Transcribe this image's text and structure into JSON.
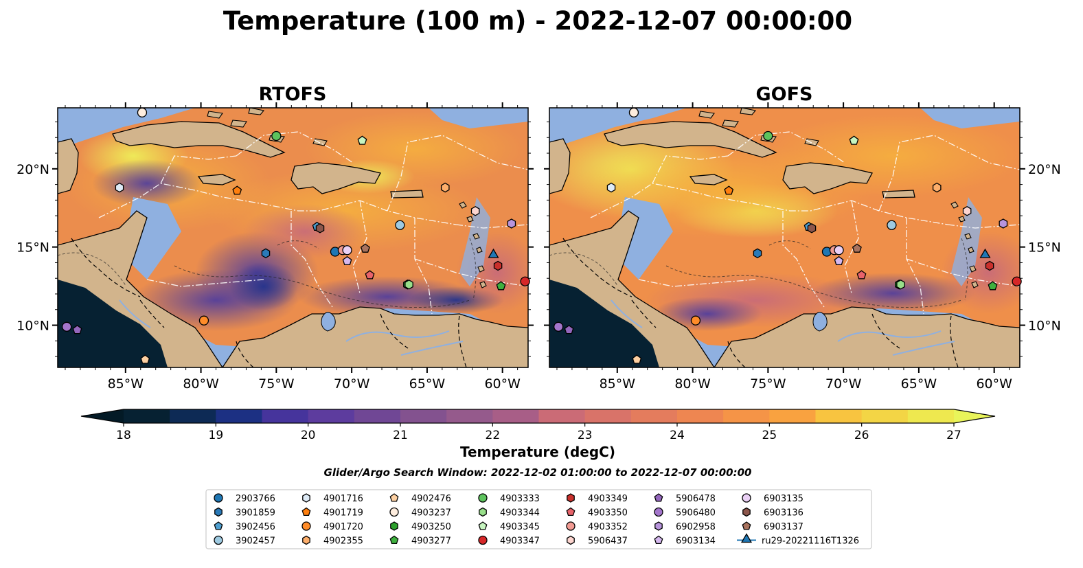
{
  "title": "Temperature (100 m) - 2022-12-07 00:00:00",
  "chart_data": {
    "type": "heatmap",
    "panels": [
      {
        "name": "RTOFS"
      },
      {
        "name": "GOFS"
      }
    ],
    "x_ticks": [
      {
        "lon": -85,
        "label": "85°W"
      },
      {
        "lon": -80,
        "label": "80°W"
      },
      {
        "lon": -75,
        "label": "75°W"
      },
      {
        "lon": -70,
        "label": "70°W"
      },
      {
        "lon": -65,
        "label": "65°W"
      },
      {
        "lon": -60,
        "label": "60°W"
      }
    ],
    "y_ticks": [
      {
        "lat": 20,
        "label": "20°N"
      },
      {
        "lat": 15,
        "label": "15°N"
      },
      {
        "lat": 10,
        "label": "10°N"
      }
    ],
    "xlim": [
      -89.5,
      -58.3
    ],
    "ylim": [
      7.3,
      23.9
    ],
    "colorbar": {
      "label": "Temperature (degC)",
      "range": [
        18,
        27
      ],
      "ticks": [
        18,
        19,
        20,
        21,
        22,
        23,
        24,
        25,
        26,
        27
      ],
      "extend": "both",
      "colors": [
        "#062132",
        "#0d2a55",
        "#1c3083",
        "#2e3196",
        "#46349c",
        "#5d3c9e",
        "#704795",
        "#83528f",
        "#955a8c",
        "#a85e87",
        "#bb6580",
        "#cb6b76",
        "#d97369",
        "#e47c5d",
        "#ee8651",
        "#f59447",
        "#f9a240",
        "#fab33e",
        "#f8c440",
        "#f3d545",
        "#eee84f"
      ],
      "under_color": "#031a26",
      "over_color": "#e9f45a"
    },
    "search_window": "Glider/Argo Search Window: 2022-12-02 01:00:00 to 2022-12-07 00:00:00",
    "observations": [
      {
        "id": "2903766",
        "marker": "circle",
        "color": "#1f77b4",
        "lon": -71.1,
        "lat": 14.7
      },
      {
        "id": "3901859",
        "marker": "hexagon",
        "color": "#2a7ab8",
        "lon": -75.7,
        "lat": 14.6
      },
      {
        "id": "3902456",
        "marker": "pentagon",
        "color": "#4f9fd0",
        "lon": -72.3,
        "lat": 16.3
      },
      {
        "id": "3902457",
        "marker": "circle",
        "color": "#9ecae1",
        "lon": -66.8,
        "lat": 16.4
      },
      {
        "id": "4901716",
        "marker": "hexagon",
        "color": "#deebf7",
        "lon": -85.4,
        "lat": 18.8
      },
      {
        "id": "4901719",
        "marker": "pentagon",
        "color": "#ff7f0e",
        "lon": -77.6,
        "lat": 18.6
      },
      {
        "id": "4901720",
        "marker": "circle",
        "color": "#ff8c29",
        "lon": -79.8,
        "lat": 10.3
      },
      {
        "id": "4902355",
        "marker": "hexagon",
        "color": "#fdae6b",
        "lon": -63.8,
        "lat": 18.8
      },
      {
        "id": "4902476",
        "marker": "pentagon",
        "color": "#fdd0a2",
        "lon": -83.7,
        "lat": 7.8
      },
      {
        "id": "4903237",
        "marker": "circle",
        "color": "#feedde",
        "lon": -83.9,
        "lat": 23.6
      },
      {
        "id": "4903250",
        "marker": "hexagon",
        "color": "#2ca02c",
        "lon": -66.3,
        "lat": 12.6
      },
      {
        "id": "4903277",
        "marker": "pentagon",
        "color": "#3fb03f",
        "lon": -60.1,
        "lat": 12.5
      },
      {
        "id": "4903333",
        "marker": "circle",
        "color": "#5dc35d",
        "lon": -75.0,
        "lat": 22.1
      },
      {
        "id": "4903344",
        "marker": "hexagon",
        "color": "#98df8a",
        "lon": -66.2,
        "lat": 12.6
      },
      {
        "id": "4903345",
        "marker": "pentagon",
        "color": "#c7f5c0",
        "lon": -69.3,
        "lat": 21.8
      },
      {
        "id": "4903347",
        "marker": "circle",
        "color": "#d62728",
        "lon": -58.5,
        "lat": 12.8
      },
      {
        "id": "4903349",
        "marker": "hexagon",
        "color": "#c9302c",
        "lon": -60.3,
        "lat": 13.8
      },
      {
        "id": "4903350",
        "marker": "pentagon",
        "color": "#e8636a",
        "lon": -68.8,
        "lat": 13.2
      },
      {
        "id": "4903352",
        "marker": "circle",
        "color": "#f29b93",
        "lon": -70.6,
        "lat": 14.8
      },
      {
        "id": "5906437",
        "marker": "hexagon",
        "color": "#fdd5cf",
        "lon": -61.8,
        "lat": 17.3
      },
      {
        "id": "5906478",
        "marker": "pentagon",
        "color": "#9467bd",
        "lon": -88.2,
        "lat": 9.7
      },
      {
        "id": "5906480",
        "marker": "circle",
        "color": "#a476cc",
        "lon": -88.9,
        "lat": 9.9
      },
      {
        "id": "6902958",
        "marker": "hexagon",
        "color": "#b794dc",
        "lon": -59.4,
        "lat": 16.5
      },
      {
        "id": "6903134",
        "marker": "pentagon",
        "color": "#d5b8ee",
        "lon": -70.3,
        "lat": 14.1
      },
      {
        "id": "6903135",
        "marker": "circle",
        "color": "#ead0f5",
        "lon": -70.3,
        "lat": 14.8
      },
      {
        "id": "6903136",
        "marker": "hexagon",
        "color": "#8c564b",
        "lon": -72.1,
        "lat": 16.2
      },
      {
        "id": "6903137",
        "marker": "pentagon",
        "color": "#a9735e",
        "lon": -69.1,
        "lat": 14.9
      },
      {
        "id": "ru29-20221116T1326",
        "marker": "triangle",
        "color": "#1f77b4",
        "lon": -60.6,
        "lat": 14.5
      }
    ]
  }
}
